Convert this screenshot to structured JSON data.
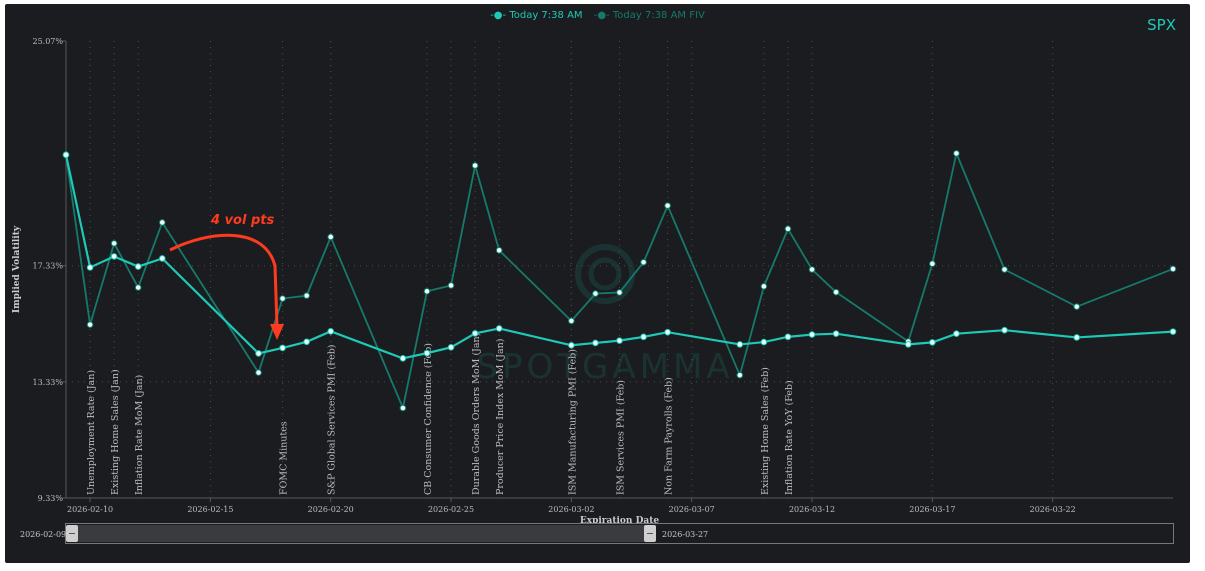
{
  "legend": [
    {
      "label": "Today 7:38 AM",
      "color": "#1ec9b7"
    },
    {
      "label": "Today 7:38 AM FIV",
      "color": "#157a6c"
    }
  ],
  "ticker": "SPX",
  "annotation": {
    "text": "4 vol pts",
    "color": "#ff3b1f"
  },
  "watermark": "SPOTGAMMA",
  "slider": {
    "start_label": "2026-02-09",
    "end_label": "2026-03-27",
    "selection": [
      0.0,
      0.52
    ]
  },
  "chart_data": {
    "type": "line",
    "title": "",
    "xlabel": "Expiration Date",
    "ylabel": "Implied Volatility",
    "xlim": [
      "2026-02-09",
      "2026-03-27"
    ],
    "ylim": [
      9.33,
      25.07
    ],
    "y_ticks": [
      "9.33%",
      "13.33%",
      "17.33%",
      "25.07%"
    ],
    "x_ticks": [
      "2026-02-10",
      "2026-02-15",
      "2026-02-20",
      "2026-02-25",
      "2026-03-02",
      "2026-03-07",
      "2026-03-12",
      "2026-03-17",
      "2026-03-22"
    ],
    "grid": true,
    "series": [
      {
        "name": "Today 7:38 AM",
        "color": "#1ec9b7",
        "points": [
          [
            "2026-02-09",
            21.15
          ],
          [
            "2026-02-10",
            17.27
          ],
          [
            "2026-02-11",
            17.65
          ],
          [
            "2026-02-12",
            17.3
          ],
          [
            "2026-02-13",
            17.58
          ],
          [
            "2026-02-17",
            14.31
          ],
          [
            "2026-02-18",
            14.5
          ],
          [
            "2026-02-19",
            14.71
          ],
          [
            "2026-02-20",
            15.07
          ],
          [
            "2026-02-23",
            14.14
          ],
          [
            "2026-02-24",
            14.32
          ],
          [
            "2026-02-25",
            14.52
          ],
          [
            "2026-02-26",
            15.0
          ],
          [
            "2026-02-27",
            15.17
          ],
          [
            "2026-03-02",
            14.59
          ],
          [
            "2026-03-03",
            14.67
          ],
          [
            "2026-03-04",
            14.75
          ],
          [
            "2026-03-05",
            14.88
          ],
          [
            "2026-03-06",
            15.04
          ],
          [
            "2026-03-09",
            14.62
          ],
          [
            "2026-03-10",
            14.7
          ],
          [
            "2026-03-11",
            14.88
          ],
          [
            "2026-03-12",
            14.96
          ],
          [
            "2026-03-13",
            14.99
          ],
          [
            "2026-03-16",
            14.62
          ],
          [
            "2026-03-17",
            14.69
          ],
          [
            "2026-03-18",
            14.99
          ],
          [
            "2026-03-20",
            15.11
          ],
          [
            "2026-03-23",
            14.86
          ],
          [
            "2026-03-27",
            15.06
          ]
        ]
      },
      {
        "name": "Today 7:38 AM FIV",
        "color": "#157a6c",
        "points": [
          [
            "2026-02-09",
            21.15
          ],
          [
            "2026-02-10",
            15.3
          ],
          [
            "2026-02-11",
            18.1
          ],
          [
            "2026-02-12",
            16.58
          ],
          [
            "2026-02-13",
            18.82
          ],
          [
            "2026-02-17",
            13.65
          ],
          [
            "2026-02-18",
            16.2
          ],
          [
            "2026-02-19",
            16.3
          ],
          [
            "2026-02-20",
            18.32
          ],
          [
            "2026-02-23",
            12.43
          ],
          [
            "2026-02-24",
            16.45
          ],
          [
            "2026-02-25",
            16.65
          ],
          [
            "2026-02-26",
            20.78
          ],
          [
            "2026-02-27",
            17.86
          ],
          [
            "2026-03-02",
            15.43
          ],
          [
            "2026-03-03",
            16.37
          ],
          [
            "2026-03-04",
            16.41
          ],
          [
            "2026-03-05",
            17.45
          ],
          [
            "2026-03-06",
            19.4
          ],
          [
            "2026-03-09",
            13.56
          ],
          [
            "2026-03-10",
            16.62
          ],
          [
            "2026-03-11",
            18.6
          ],
          [
            "2026-03-12",
            17.2
          ],
          [
            "2026-03-13",
            16.42
          ],
          [
            "2026-03-16",
            14.72
          ],
          [
            "2026-03-17",
            17.4
          ],
          [
            "2026-03-18",
            21.2
          ],
          [
            "2026-03-20",
            17.2
          ],
          [
            "2026-03-23",
            15.92
          ],
          [
            "2026-03-27",
            17.22
          ]
        ]
      }
    ],
    "events": [
      {
        "date": "2026-02-10",
        "label": "Unemployment Rate (Jan)"
      },
      {
        "date": "2026-02-11",
        "label": "Existing Home Sales (Jan)"
      },
      {
        "date": "2026-02-12",
        "label": "Inflation Rate MoM (Jan)"
      },
      {
        "date": "2026-02-18",
        "label": "FOMC Minutes"
      },
      {
        "date": "2026-02-20",
        "label": "S&P Global Services PMI (Feb)"
      },
      {
        "date": "2026-02-24",
        "label": "CB Consumer Confidence (Feb)"
      },
      {
        "date": "2026-02-26",
        "label": "Durable Goods Orders MoM (Jan)"
      },
      {
        "date": "2026-02-27",
        "label": "Producer Price Index MoM (Jan)"
      },
      {
        "date": "2026-03-02",
        "label": "ISM Manufacturing PMI (Feb)"
      },
      {
        "date": "2026-03-04",
        "label": "ISM Services PMI (Feb)"
      },
      {
        "date": "2026-03-06",
        "label": "Non Farm Payrolls (Feb)"
      },
      {
        "date": "2026-03-10",
        "label": "Existing Home Sales (Feb)"
      },
      {
        "date": "2026-03-11",
        "label": "Inflation Rate YoY (Feb)"
      }
    ]
  }
}
